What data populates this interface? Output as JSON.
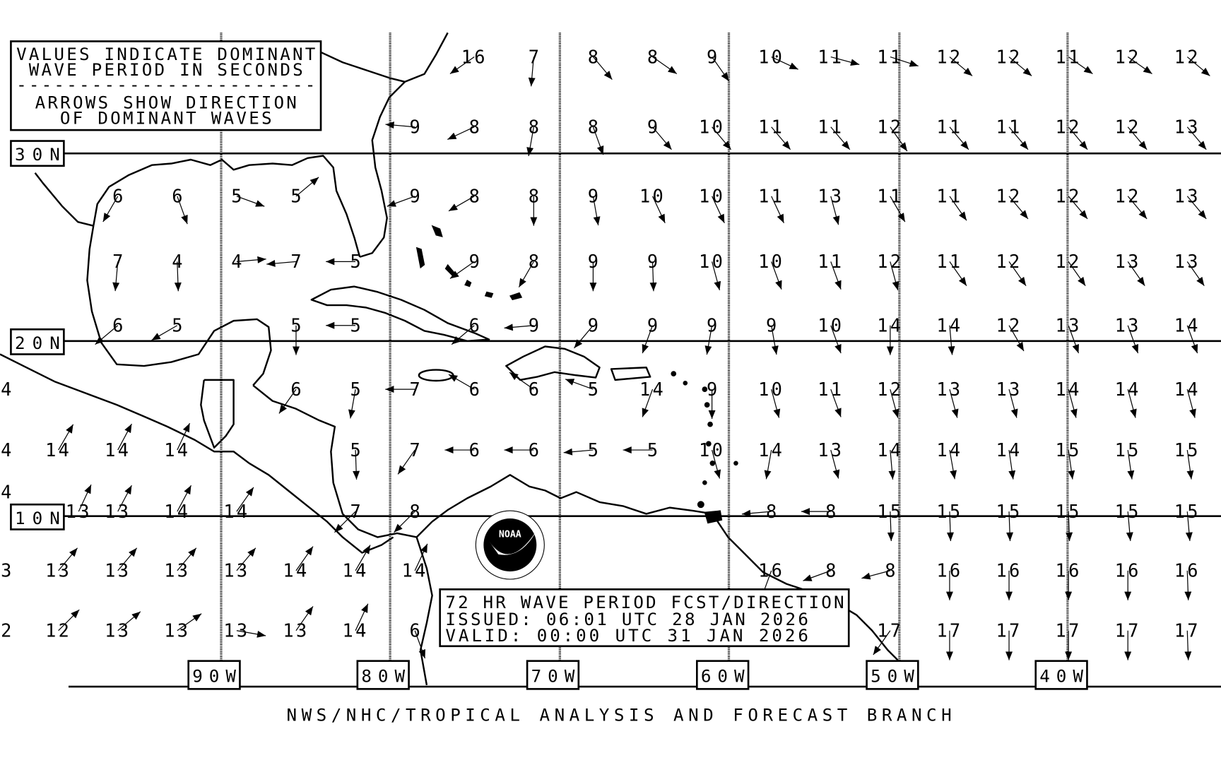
{
  "legend": {
    "line1": "VALUES INDICATE DOMINANT",
    "line2": "WAVE PERIOD IN SECONDS",
    "separator": "------------------------",
    "line3": "ARROWS SHOW DIRECTION",
    "line4": "OF DOMINANT WAVES"
  },
  "info_box": {
    "title": "72 HR WAVE PERIOD FCST/DIRECTION",
    "issued": "ISSUED:  06:01 UTC 28 JAN 2026",
    "valid": "VALID:   00:00 UTC 31 JAN 2026"
  },
  "footer": "NWS/NHC/TROPICAL ANALYSIS AND FORECAST BRANCH",
  "latitude_labels": [
    "30N",
    "20N",
    "10N"
  ],
  "longitude_labels": [
    "90W",
    "80W",
    "70W",
    "60W",
    "50W",
    "40W"
  ],
  "logo": {
    "text": "NOAA",
    "ring_top": "NATIONAL OCEANIC AND ATMOSPHERIC ADMINISTRATION",
    "ring_bottom": "U.S. DEPARTMENT OF COMMERCE"
  },
  "units": "seconds",
  "left_edge_clipped": [
    null,
    null,
    null,
    null,
    null,
    "4",
    "4",
    "4",
    "3",
    "2"
  ],
  "wave_grid": {
    "rows": [
      [
        null,
        null,
        null,
        null,
        null,
        null,
        null,
        {
          "p": 16,
          "dir": 235
        },
        {
          "p": 7,
          "dir": 185
        },
        {
          "p": 8,
          "dir": 140
        },
        {
          "p": 8,
          "dir": 125
        },
        {
          "p": 9,
          "dir": 145
        },
        {
          "p": 10,
          "dir": 115
        },
        {
          "p": 11,
          "dir": 105
        },
        {
          "p": 11,
          "dir": 108
        },
        {
          "p": 12,
          "dir": 130
        },
        {
          "p": 12,
          "dir": 130
        },
        {
          "p": 11,
          "dir": 125
        },
        {
          "p": 12,
          "dir": 125
        },
        {
          "p": 12,
          "dir": 130
        }
      ],
      [
        null,
        null,
        null,
        null,
        null,
        null,
        {
          "p": 9,
          "dir": 275
        },
        {
          "p": 8,
          "dir": 245
        },
        {
          "p": 8,
          "dir": 190
        },
        {
          "p": 8,
          "dir": 160
        },
        {
          "p": 9,
          "dir": 140
        },
        {
          "p": 10,
          "dir": 140
        },
        {
          "p": 11,
          "dir": 140
        },
        {
          "p": 11,
          "dir": 140
        },
        {
          "p": 12,
          "dir": 145
        },
        {
          "p": 11,
          "dir": 140
        },
        {
          "p": 11,
          "dir": 140
        },
        {
          "p": 12,
          "dir": 140
        },
        {
          "p": 12,
          "dir": 140
        },
        {
          "p": 13,
          "dir": 140
        }
      ],
      [
        null,
        {
          "p": 6,
          "dir": 210
        },
        {
          "p": 6,
          "dir": 160
        },
        {
          "p": 5,
          "dir": 110
        },
        {
          "p": 5,
          "dir": 50
        },
        null,
        {
          "p": 9,
          "dir": 250
        },
        {
          "p": 8,
          "dir": 240
        },
        {
          "p": 8,
          "dir": 180
        },
        {
          "p": 9,
          "dir": 170
        },
        {
          "p": 10,
          "dir": 155
        },
        {
          "p": 10,
          "dir": 155
        },
        {
          "p": 11,
          "dir": 155
        },
        {
          "p": 13,
          "dir": 165
        },
        {
          "p": 11,
          "dir": 150
        },
        {
          "p": 11,
          "dir": 145
        },
        {
          "p": 12,
          "dir": 140
        },
        {
          "p": 12,
          "dir": 140
        },
        {
          "p": 12,
          "dir": 140
        },
        {
          "p": 13,
          "dir": 140
        }
      ],
      [
        null,
        {
          "p": 7,
          "dir": 185
        },
        {
          "p": 4,
          "dir": 178
        },
        {
          "p": 4,
          "dir": 85
        },
        {
          "p": 7,
          "dir": 265
        },
        {
          "p": 5,
          "dir": 270
        },
        null,
        {
          "p": 9,
          "dir": 235
        },
        {
          "p": 8,
          "dir": 210
        },
        {
          "p": 9,
          "dir": 180
        },
        {
          "p": 9,
          "dir": 178
        },
        {
          "p": 10,
          "dir": 165
        },
        {
          "p": 10,
          "dir": 160
        },
        {
          "p": 11,
          "dir": 160
        },
        {
          "p": 12,
          "dir": 165
        },
        {
          "p": 11,
          "dir": 145
        },
        {
          "p": 12,
          "dir": 145
        },
        {
          "p": 12,
          "dir": 145
        },
        {
          "p": 13,
          "dir": 145
        },
        {
          "p": 13,
          "dir": 145
        }
      ],
      [
        null,
        {
          "p": 6,
          "dir": 230
        },
        {
          "p": 5,
          "dir": 240
        },
        null,
        {
          "p": 5,
          "dir": 180
        },
        {
          "p": 5,
          "dir": 270
        },
        null,
        {
          "p": 6,
          "dir": 230
        },
        {
          "p": 9,
          "dir": 265
        },
        {
          "p": 9,
          "dir": 220
        },
        {
          "p": 9,
          "dir": 200
        },
        {
          "p": 9,
          "dir": 190
        },
        {
          "p": 9,
          "dir": 170
        },
        {
          "p": 10,
          "dir": 160
        },
        {
          "p": 14,
          "dir": 180
        },
        {
          "p": 14,
          "dir": 175
        },
        {
          "p": 12,
          "dir": 150
        },
        {
          "p": 13,
          "dir": 160
        },
        {
          "p": 13,
          "dir": 160
        },
        {
          "p": 14,
          "dir": 160
        }
      ],
      [
        null,
        null,
        null,
        null,
        {
          "p": 6,
          "dir": 215
        },
        {
          "p": 5,
          "dir": 190
        },
        {
          "p": 7,
          "dir": 270
        },
        {
          "p": 6,
          "dir": 300
        },
        {
          "p": 6,
          "dir": 305
        },
        {
          "p": 5,
          "dir": 290
        },
        {
          "p": 14,
          "dir": 200
        },
        {
          "p": 9,
          "dir": 180
        },
        {
          "p": 10,
          "dir": 165
        },
        {
          "p": 11,
          "dir": 160
        },
        {
          "p": 12,
          "dir": 165
        },
        {
          "p": 13,
          "dir": 165
        },
        {
          "p": 13,
          "dir": 165
        },
        {
          "p": 14,
          "dir": 165
        },
        {
          "p": 14,
          "dir": 165
        },
        {
          "p": 14,
          "dir": 165
        }
      ],
      [
        {
          "p": 14,
          "dir": 30
        },
        {
          "p": 14,
          "dir": 28
        },
        {
          "p": 14,
          "dir": 25
        },
        null,
        null,
        {
          "p": 5,
          "dir": 178
        },
        {
          "p": 7,
          "dir": 215
        },
        {
          "p": 6,
          "dir": 270
        },
        {
          "p": 6,
          "dir": 270
        },
        {
          "p": 5,
          "dir": 265
        },
        {
          "p": 5,
          "dir": 270
        },
        {
          "p": 10,
          "dir": 165
        },
        {
          "p": 14,
          "dir": 190
        },
        {
          "p": 13,
          "dir": 165
        },
        {
          "p": 14,
          "dir": 175
        },
        {
          "p": 14,
          "dir": 170
        },
        {
          "p": 14,
          "dir": 172
        },
        {
          "p": 15,
          "dir": 172
        },
        {
          "p": 15,
          "dir": 172
        },
        {
          "p": 15,
          "dir": 172
        }
      ],
      [
        {
          "p": 13,
          "dir": 25
        },
        {
          "p": 13,
          "dir": 28
        },
        {
          "p": 14,
          "dir": 28
        },
        {
          "p": 14,
          "dir": 35
        },
        null,
        {
          "p": 7,
          "dir": 225
        },
        {
          "p": 8,
          "dir": 225
        },
        null,
        null,
        null,
        null,
        null,
        {
          "p": 8,
          "dir": 265
        },
        {
          "p": 8,
          "dir": 270
        },
        {
          "p": 15,
          "dir": 178
        },
        {
          "p": 15,
          "dir": 178
        },
        {
          "p": 15,
          "dir": 178
        },
        {
          "p": 15,
          "dir": 178
        },
        {
          "p": 15,
          "dir": 175
        },
        {
          "p": 15,
          "dir": 175
        }
      ],
      [
        {
          "p": 13,
          "dir": 40
        },
        {
          "p": 13,
          "dir": 40
        },
        {
          "p": 13,
          "dir": 40
        },
        {
          "p": 13,
          "dir": 40
        },
        {
          "p": 14,
          "dir": 35
        },
        {
          "p": 14,
          "dir": 30
        },
        {
          "p": 14,
          "dir": 25
        },
        null,
        null,
        null,
        null,
        null,
        {
          "p": 16,
          "dir": 200
        },
        {
          "p": 8,
          "dir": 250
        },
        {
          "p": 8,
          "dir": 255
        },
        {
          "p": 16,
          "dir": 180
        },
        {
          "p": 16,
          "dir": 180
        },
        {
          "p": 16,
          "dir": 180
        },
        {
          "p": 16,
          "dir": 180
        },
        {
          "p": 16,
          "dir": 178
        }
      ],
      [
        {
          "p": 12,
          "dir": 45
        },
        {
          "p": 13,
          "dir": 50
        },
        {
          "p": 13,
          "dir": 55
        },
        {
          "p": 13,
          "dir": 100
        },
        {
          "p": 13,
          "dir": 35
        },
        {
          "p": 14,
          "dir": 25
        },
        {
          "p": 6,
          "dir": 160
        },
        null,
        null,
        null,
        null,
        null,
        null,
        null,
        {
          "p": 17,
          "dir": 215
        },
        {
          "p": 17,
          "dir": 180
        },
        {
          "p": 17,
          "dir": 180
        },
        {
          "p": 17,
          "dir": 180
        },
        {
          "p": 17,
          "dir": 180
        },
        {
          "p": 17,
          "dir": 178
        }
      ]
    ]
  }
}
